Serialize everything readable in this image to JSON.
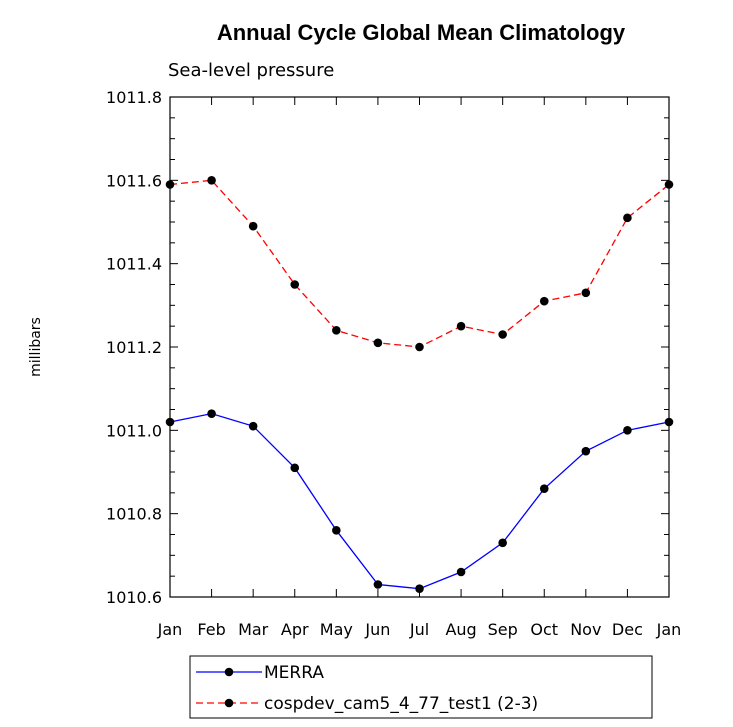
{
  "chart_data": {
    "type": "line",
    "title": "Annual Cycle Global Mean Climatology",
    "subtitle": "Sea-level pressure",
    "xlabel": "",
    "ylabel": "millibars",
    "categories": [
      "Jan",
      "Feb",
      "Mar",
      "Apr",
      "May",
      "Jun",
      "Jul",
      "Aug",
      "Sep",
      "Oct",
      "Nov",
      "Dec",
      "Jan"
    ],
    "ylim": [
      1010.6,
      1011.8
    ],
    "yticks": [
      1010.6,
      1010.8,
      1011.0,
      1011.2,
      1011.4,
      1011.6,
      1011.8
    ],
    "ytick_labels": [
      "1010.6",
      "1010.8",
      "1011.0",
      "1011.2",
      "1011.4",
      "1011.6",
      "1011.8"
    ],
    "grid": false,
    "legend_position": "bottom",
    "series": [
      {
        "name": "MERRA",
        "color": "#0000ff",
        "dash": "solid",
        "values": [
          1011.02,
          1011.04,
          1011.01,
          1010.91,
          1010.76,
          1010.63,
          1010.62,
          1010.66,
          1010.73,
          1010.86,
          1010.95,
          1011.0,
          1011.02
        ]
      },
      {
        "name": "cospdev_cam5_4_77_test1 (2-3)",
        "color": "#ff0000",
        "dash": "dashed",
        "values": [
          1011.59,
          1011.6,
          1011.49,
          1011.35,
          1011.24,
          1011.21,
          1011.2,
          1011.25,
          1011.23,
          1011.31,
          1011.33,
          1011.51,
          1011.59
        ]
      }
    ]
  }
}
